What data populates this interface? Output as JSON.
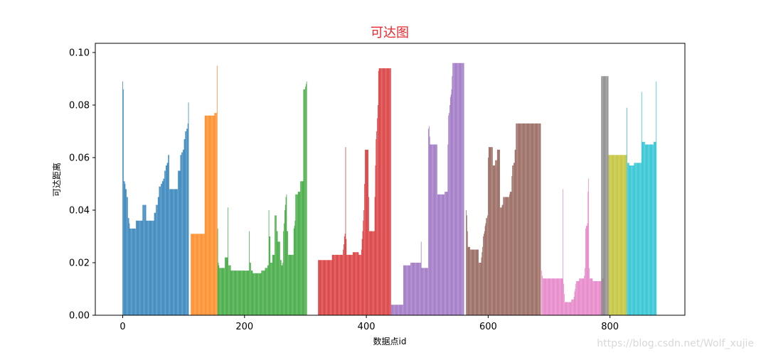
{
  "chart_data": {
    "type": "bar",
    "title": "可达图",
    "xlabel": "数据点id",
    "ylabel": "可达距离",
    "xlim": [
      -45,
      923
    ],
    "ylim": [
      0.0,
      0.1035
    ],
    "xticks": [
      0,
      200,
      400,
      600,
      800
    ],
    "yticks": [
      0.0,
      0.02,
      0.04,
      0.06,
      0.08,
      0.1
    ],
    "xtick_labels": [
      "0",
      "200",
      "400",
      "600",
      "800"
    ],
    "ytick_labels": [
      "0.00",
      "0.02",
      "0.04",
      "0.06",
      "0.08",
      "0.10"
    ],
    "grid": false,
    "legend": "none",
    "series": [
      {
        "color": "#1f77b4",
        "x_start": 0,
        "values": [
          0.089,
          0.086,
          0.051,
          0.051,
          0.05,
          0.048,
          0.048,
          0.045,
          0.045,
          0.037,
          0.037,
          0.035,
          0.033,
          0.033,
          0.033,
          0.033,
          0.033,
          0.033,
          0.033,
          0.033,
          0.033,
          0.033,
          0.036,
          0.036,
          0.036,
          0.036,
          0.036,
          0.036,
          0.036,
          0.036,
          0.036,
          0.036,
          0.036,
          0.042,
          0.042,
          0.042,
          0.042,
          0.042,
          0.042,
          0.036,
          0.036,
          0.036,
          0.036,
          0.036,
          0.036,
          0.036,
          0.036,
          0.036,
          0.036,
          0.036,
          0.036,
          0.036,
          0.039,
          0.039,
          0.039,
          0.042,
          0.042,
          0.042,
          0.045,
          0.045,
          0.049,
          0.049,
          0.049,
          0.05,
          0.05,
          0.051,
          0.051,
          0.052,
          0.052,
          0.055,
          0.055,
          0.057,
          0.057,
          0.058,
          0.058,
          0.061,
          0.061,
          0.048,
          0.048,
          0.048,
          0.048,
          0.048,
          0.048,
          0.048,
          0.048,
          0.048,
          0.048,
          0.048,
          0.048,
          0.048,
          0.048,
          0.055,
          0.055,
          0.055,
          0.055,
          0.061,
          0.061,
          0.062,
          0.062,
          0.063,
          0.063,
          0.067,
          0.067,
          0.07,
          0.07,
          0.071,
          0.071,
          0.073,
          0.081
        ]
      },
      {
        "color": "#ff7f0e",
        "x_start": 112,
        "values": [
          0.031,
          0.031,
          0.031,
          0.031,
          0.031,
          0.031,
          0.031,
          0.031,
          0.031,
          0.031,
          0.031,
          0.031,
          0.031,
          0.031,
          0.031,
          0.031,
          0.031,
          0.031,
          0.031,
          0.031,
          0.031,
          0.031,
          0.031,
          0.076,
          0.076,
          0.076,
          0.076,
          0.076,
          0.076,
          0.076,
          0.076,
          0.076,
          0.076,
          0.076,
          0.076,
          0.076,
          0.076,
          0.076,
          0.076,
          0.077,
          0.077,
          0.077,
          0.077,
          0.095
        ]
      },
      {
        "color": "#2ca02c",
        "x_start": 156,
        "values": [
          0.033,
          0.02,
          0.019,
          0.018,
          0.018,
          0.018,
          0.018,
          0.018,
          0.018,
          0.018,
          0.018,
          0.018,
          0.022,
          0.022,
          0.022,
          0.022,
          0.022,
          0.041,
          0.019,
          0.019,
          0.019,
          0.019,
          0.017,
          0.017,
          0.017,
          0.017,
          0.017,
          0.017,
          0.017,
          0.017,
          0.017,
          0.017,
          0.017,
          0.017,
          0.017,
          0.017,
          0.017,
          0.017,
          0.017,
          0.017,
          0.017,
          0.017,
          0.017,
          0.017,
          0.017,
          0.017,
          0.017,
          0.017,
          0.017,
          0.017,
          0.017,
          0.017,
          0.032,
          0.02,
          0.02,
          0.017,
          0.017,
          0.017,
          0.016,
          0.016,
          0.016,
          0.016,
          0.016,
          0.016,
          0.016,
          0.016,
          0.016,
          0.016,
          0.016,
          0.016,
          0.016,
          0.016,
          0.017,
          0.017,
          0.017,
          0.017,
          0.017,
          0.017,
          0.018,
          0.018,
          0.018,
          0.018,
          0.019,
          0.019,
          0.04,
          0.03,
          0.03,
          0.02,
          0.02,
          0.02,
          0.023,
          0.023,
          0.023,
          0.023,
          0.038,
          0.038,
          0.038,
          0.032,
          0.032,
          0.028,
          0.028,
          0.028,
          0.028,
          0.021,
          0.021,
          0.019,
          0.019,
          0.02,
          0.032,
          0.035,
          0.04,
          0.042,
          0.045,
          0.046,
          0.032,
          0.032,
          0.023,
          0.023,
          0.023,
          0.023,
          0.023,
          0.023,
          0.023,
          0.023,
          0.023,
          0.033,
          0.034,
          0.036,
          0.046,
          0.046,
          0.046,
          0.046,
          0.047,
          0.047,
          0.047,
          0.047,
          0.051,
          0.051,
          0.051,
          0.051,
          0.051,
          0.086,
          0.086,
          0.086,
          0.087,
          0.088,
          0.089
        ]
      },
      {
        "color": "#d62728",
        "x_start": 321,
        "values": [
          0.021,
          0.021,
          0.021,
          0.021,
          0.021,
          0.021,
          0.021,
          0.021,
          0.021,
          0.021,
          0.021,
          0.021,
          0.021,
          0.021,
          0.021,
          0.021,
          0.021,
          0.021,
          0.021,
          0.021,
          0.021,
          0.021,
          0.021,
          0.023,
          0.023,
          0.023,
          0.023,
          0.023,
          0.023,
          0.023,
          0.023,
          0.023,
          0.023,
          0.023,
          0.023,
          0.023,
          0.023,
          0.023,
          0.023,
          0.023,
          0.023,
          0.025,
          0.027,
          0.03,
          0.031,
          0.064,
          0.029,
          0.023,
          0.023,
          0.023,
          0.023,
          0.023,
          0.023,
          0.023,
          0.023,
          0.023,
          0.023,
          0.024,
          0.024,
          0.024,
          0.024,
          0.024,
          0.024,
          0.024,
          0.024,
          0.024,
          0.024,
          0.023,
          0.023,
          0.023,
          0.023,
          0.025,
          0.029,
          0.032,
          0.036,
          0.04,
          0.05,
          0.063,
          0.063,
          0.063,
          0.063,
          0.063,
          0.063,
          0.045,
          0.032,
          0.032,
          0.032,
          0.032,
          0.032,
          0.032,
          0.032,
          0.032,
          0.032,
          0.045,
          0.057,
          0.067,
          0.07,
          0.075,
          0.08,
          0.093,
          0.094,
          0.094,
          0.094,
          0.094,
          0.094,
          0.094,
          0.094,
          0.094,
          0.094,
          0.094,
          0.094,
          0.094,
          0.094,
          0.094,
          0.094,
          0.094,
          0.094,
          0.094,
          0.094,
          0.094
        ]
      },
      {
        "color": "#9467bd",
        "x_start": 441,
        "values": [
          0.004,
          0.004,
          0.004,
          0.004,
          0.004,
          0.004,
          0.004,
          0.004,
          0.004,
          0.004,
          0.004,
          0.004,
          0.004,
          0.004,
          0.004,
          0.004,
          0.004,
          0.004,
          0.004,
          0.004,
          0.019,
          0.019,
          0.019,
          0.019,
          0.019,
          0.019,
          0.019,
          0.019,
          0.019,
          0.019,
          0.019,
          0.019,
          0.02,
          0.02,
          0.02,
          0.02,
          0.02,
          0.02,
          0.02,
          0.02,
          0.02,
          0.02,
          0.02,
          0.02,
          0.02,
          0.02,
          0.02,
          0.02,
          0.02,
          0.028,
          0.018,
          0.018,
          0.018,
          0.018,
          0.018,
          0.018,
          0.018,
          0.018,
          0.018,
          0.018,
          0.018,
          0.071,
          0.072,
          0.068,
          0.065,
          0.065,
          0.065,
          0.065,
          0.065,
          0.065,
          0.065,
          0.065,
          0.065,
          0.065,
          0.065,
          0.065,
          0.046,
          0.046,
          0.046,
          0.046,
          0.046,
          0.046,
          0.046,
          0.046,
          0.046,
          0.046,
          0.046,
          0.046,
          0.047,
          0.047,
          0.047,
          0.047,
          0.047,
          0.065,
          0.076,
          0.077,
          0.08,
          0.083,
          0.084,
          0.086,
          0.091,
          0.096,
          0.096,
          0.096,
          0.096,
          0.096,
          0.096,
          0.096,
          0.096,
          0.096,
          0.096,
          0.096,
          0.096,
          0.096,
          0.096,
          0.096,
          0.096,
          0.096,
          0.096,
          0.096
        ]
      },
      {
        "color": "#8c564b",
        "x_start": 564,
        "values": [
          0.04,
          0.038,
          0.032,
          0.026,
          0.026,
          0.026,
          0.026,
          0.025,
          0.025,
          0.025,
          0.025,
          0.025,
          0.025,
          0.025,
          0.025,
          0.025,
          0.025,
          0.025,
          0.025,
          0.025,
          0.025,
          0.02,
          0.02,
          0.02,
          0.02,
          0.022,
          0.024,
          0.026,
          0.03,
          0.031,
          0.032,
          0.034,
          0.035,
          0.037,
          0.037,
          0.038,
          0.06,
          0.064,
          0.064,
          0.064,
          0.064,
          0.064,
          0.064,
          0.064,
          0.057,
          0.057,
          0.057,
          0.057,
          0.059,
          0.059,
          0.059,
          0.063,
          0.063,
          0.063,
          0.063,
          0.063,
          0.041,
          0.041,
          0.041,
          0.042,
          0.042,
          0.045,
          0.045,
          0.045,
          0.045,
          0.045,
          0.045,
          0.045,
          0.045,
          0.045,
          0.045,
          0.046,
          0.047,
          0.047,
          0.047,
          0.053,
          0.057,
          0.057,
          0.058,
          0.058,
          0.063,
          0.063,
          0.073,
          0.073,
          0.073,
          0.073,
          0.073,
          0.073,
          0.073,
          0.073,
          0.073,
          0.073,
          0.073,
          0.073,
          0.073,
          0.073,
          0.073,
          0.073,
          0.073,
          0.073,
          0.073,
          0.073,
          0.073,
          0.073,
          0.073,
          0.073,
          0.073,
          0.073,
          0.073,
          0.073,
          0.073,
          0.073,
          0.073,
          0.073,
          0.073,
          0.073,
          0.073,
          0.073,
          0.073,
          0.073,
          0.073,
          0.073,
          0.073
        ]
      },
      {
        "color": "#e377c2",
        "x_start": 688,
        "values": [
          0.017,
          0.015,
          0.014,
          0.014,
          0.014,
          0.014,
          0.014,
          0.014,
          0.014,
          0.014,
          0.014,
          0.014,
          0.014,
          0.014,
          0.014,
          0.014,
          0.014,
          0.014,
          0.014,
          0.014,
          0.014,
          0.014,
          0.014,
          0.014,
          0.014,
          0.014,
          0.014,
          0.014,
          0.014,
          0.014,
          0.014,
          0.014,
          0.014,
          0.014,
          0.014,
          0.048,
          0.012,
          0.008,
          0.005,
          0.005,
          0.005,
          0.005,
          0.005,
          0.005,
          0.005,
          0.005,
          0.005,
          0.005,
          0.005,
          0.006,
          0.006,
          0.006,
          0.006,
          0.007,
          0.009,
          0.01,
          0.012,
          0.013,
          0.013,
          0.013,
          0.013,
          0.013,
          0.014,
          0.014,
          0.014,
          0.014,
          0.014,
          0.014,
          0.014,
          0.014,
          0.015,
          0.018,
          0.033,
          0.034,
          0.034,
          0.035,
          0.047,
          0.052,
          0.018,
          0.014,
          0.014,
          0.014,
          0.014,
          0.014,
          0.013,
          0.013,
          0.013,
          0.013,
          0.013,
          0.013,
          0.013,
          0.013,
          0.013,
          0.013,
          0.013,
          0.013,
          0.013,
          0.013,
          0.013,
          0.014,
          0.014,
          0.014,
          0.014
        ]
      },
      {
        "color": "#7f7f7f",
        "x_start": 786,
        "values": [
          0.091,
          0.091,
          0.091,
          0.091,
          0.091,
          0.091,
          0.091,
          0.091,
          0.091,
          0.091,
          0.091,
          0.091
        ]
      },
      {
        "color": "#bcbd22",
        "x_start": 798,
        "values": [
          0.061,
          0.061,
          0.061,
          0.061,
          0.061,
          0.061,
          0.061,
          0.061,
          0.061,
          0.061,
          0.061,
          0.061,
          0.061,
          0.061,
          0.061,
          0.061,
          0.061,
          0.061,
          0.061,
          0.061,
          0.061,
          0.061,
          0.061,
          0.061,
          0.061,
          0.061,
          0.061,
          0.061,
          0.061,
          0.061
        ]
      },
      {
        "color": "#17becf",
        "x_start": 828,
        "values": [
          0.079,
          0.058,
          0.058,
          0.058,
          0.057,
          0.057,
          0.057,
          0.057,
          0.057,
          0.057,
          0.057,
          0.057,
          0.058,
          0.058,
          0.058,
          0.058,
          0.058,
          0.058,
          0.058,
          0.058,
          0.058,
          0.058,
          0.058,
          0.058,
          0.085,
          0.066,
          0.066,
          0.066,
          0.066,
          0.066,
          0.065,
          0.065,
          0.065,
          0.065,
          0.065,
          0.065,
          0.065,
          0.065,
          0.065,
          0.065,
          0.065,
          0.065,
          0.065,
          0.065,
          0.066,
          0.066,
          0.066,
          0.066,
          0.089
        ]
      }
    ]
  },
  "watermark": "https://blog.csdn.net/Wolf_xujie"
}
